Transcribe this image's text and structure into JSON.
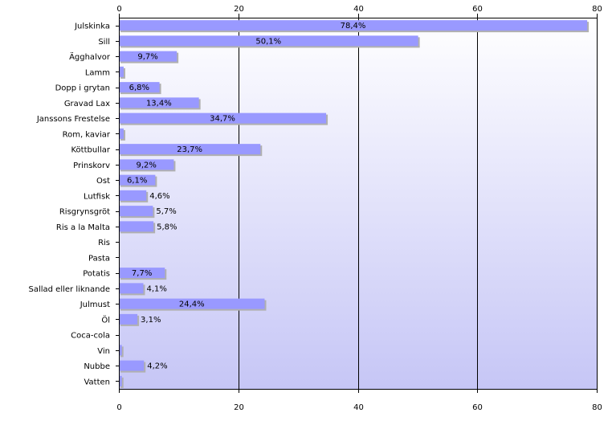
{
  "chart_data": {
    "type": "bar",
    "orientation": "horizontal",
    "title": "",
    "xlabel": "",
    "ylabel": "",
    "xlim": [
      0,
      80
    ],
    "x_ticks": [
      "0",
      "20",
      "40",
      "60",
      "80"
    ],
    "axis_labels_top_and_bottom": true,
    "grid": "vertical",
    "categories": [
      "Julskinka",
      "Sill",
      "Ägghalvor",
      "Lamm",
      "Dopp i grytan",
      "Gravad Lax",
      "Janssons Frestelse",
      "Rom, kaviar",
      "Köttbullar",
      "Prinskorv",
      "Ost",
      "Lutfisk",
      "Risgrynsgröt",
      "Ris a la Malta",
      "Ris",
      "Pasta",
      "Potatis",
      "Sallad eller liknande",
      "Julmust",
      "Öl",
      "Coca-cola",
      "Vin",
      "Nubbe",
      "Vatten"
    ],
    "values": [
      78.4,
      50.1,
      9.7,
      0.8,
      6.8,
      13.4,
      34.7,
      0.8,
      23.7,
      9.2,
      6.1,
      4.6,
      5.7,
      5.8,
      0,
      0,
      7.7,
      4.1,
      24.4,
      3.1,
      0,
      0.5,
      4.2,
      0.5
    ],
    "data_labels": [
      "78,4%",
      "50,1%",
      "9,7%",
      "",
      "6,8%",
      "13,4%",
      "34,7%",
      "",
      "23,7%",
      "9,2%",
      "6,1%",
      "4,6%",
      "5,7%",
      "5,8%",
      "",
      "",
      "7,7%",
      "4,1%",
      "24,4%",
      "3,1%",
      "",
      "",
      "4,2%",
      ""
    ],
    "colors": {
      "bar": "#9999ff",
      "bar_shadow": "#b0b0b0",
      "plot_bg_top": "#ffffff",
      "plot_bg_bottom": "#c6c6f6",
      "grid": "#000000"
    }
  }
}
